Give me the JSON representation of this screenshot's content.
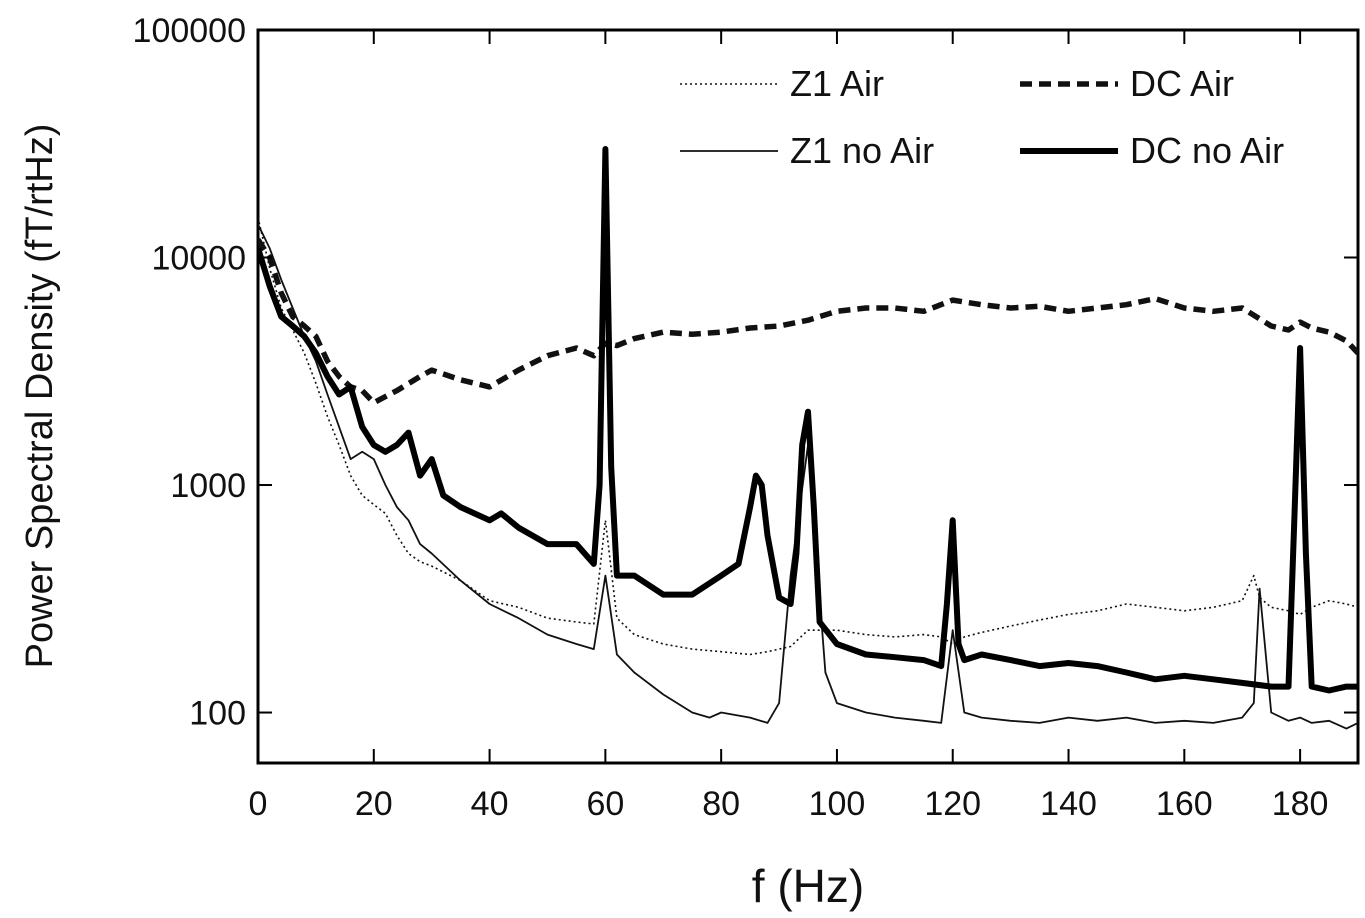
{
  "chart_data": {
    "type": "line",
    "title": "",
    "xlabel": "f (Hz)",
    "ylabel": "Power Spectral Density (fT/rtHz)",
    "xlim": [
      0,
      190
    ],
    "ylim": [
      60,
      100000
    ],
    "yscale": "log",
    "grid": false,
    "legend_position": "top-right",
    "x_ticks": [
      0,
      20,
      40,
      60,
      80,
      100,
      120,
      140,
      160,
      180
    ],
    "y_ticks": [
      100,
      1000,
      10000,
      100000
    ],
    "series": [
      {
        "name": "Z1 Air",
        "style": "dotted",
        "color": "#111111",
        "x": [
          0,
          2,
          4,
          6,
          8,
          10,
          12,
          14,
          16,
          18,
          20,
          22,
          24,
          26,
          28,
          30,
          35,
          40,
          45,
          50,
          55,
          58,
          60,
          62,
          65,
          70,
          75,
          80,
          85,
          88,
          90,
          92,
          95,
          100,
          105,
          110,
          115,
          118,
          120,
          122,
          125,
          130,
          135,
          140,
          145,
          150,
          155,
          160,
          165,
          170,
          172,
          173,
          175,
          178,
          180,
          182,
          185,
          188,
          190
        ],
        "y": [
          15000,
          9000,
          6000,
          4800,
          3800,
          2800,
          2000,
          1500,
          1100,
          900,
          820,
          750,
          600,
          500,
          460,
          440,
          380,
          310,
          290,
          260,
          250,
          245,
          700,
          260,
          220,
          200,
          190,
          185,
          180,
          185,
          190,
          195,
          230,
          230,
          220,
          215,
          220,
          215,
          200,
          215,
          225,
          240,
          255,
          270,
          280,
          300,
          290,
          280,
          290,
          310,
          400,
          320,
          290,
          280,
          270,
          290,
          310,
          300,
          290
        ]
      },
      {
        "name": "Z1 no Air",
        "style": "solid",
        "color": "#111111",
        "x": [
          0,
          2,
          4,
          6,
          8,
          10,
          12,
          14,
          16,
          18,
          20,
          22,
          24,
          26,
          28,
          30,
          35,
          40,
          45,
          50,
          55,
          58,
          60,
          62,
          65,
          70,
          75,
          78,
          80,
          85,
          88,
          90,
          92,
          95,
          98,
          100,
          105,
          110,
          115,
          118,
          120,
          122,
          125,
          130,
          135,
          140,
          145,
          150,
          155,
          160,
          165,
          170,
          172,
          173,
          175,
          178,
          180,
          182,
          185,
          188,
          190
        ],
        "y": [
          14000,
          11000,
          8000,
          6000,
          4500,
          3500,
          2500,
          1800,
          1300,
          1400,
          1300,
          1000,
          800,
          700,
          550,
          500,
          380,
          300,
          260,
          220,
          200,
          190,
          400,
          180,
          150,
          120,
          100,
          95,
          100,
          95,
          90,
          110,
          400,
          1500,
          150,
          110,
          100,
          95,
          92,
          90,
          230,
          100,
          95,
          92,
          90,
          95,
          92,
          95,
          90,
          92,
          90,
          95,
          110,
          350,
          100,
          92,
          95,
          90,
          92,
          85,
          90
        ]
      },
      {
        "name": "DC Air",
        "style": "dashed",
        "color": "#111111",
        "x": [
          0,
          2,
          4,
          6,
          8,
          10,
          12,
          14,
          16,
          18,
          20,
          24,
          28,
          30,
          35,
          40,
          45,
          50,
          55,
          58,
          60,
          62,
          65,
          70,
          75,
          80,
          85,
          90,
          95,
          100,
          105,
          110,
          115,
          120,
          125,
          130,
          135,
          140,
          145,
          150,
          155,
          160,
          165,
          170,
          175,
          178,
          180,
          182,
          185,
          188,
          190
        ],
        "y": [
          12000,
          10000,
          7000,
          5500,
          5000,
          4500,
          3500,
          3000,
          2700,
          2600,
          2300,
          2600,
          3000,
          3200,
          2900,
          2700,
          3200,
          3700,
          4000,
          3700,
          4200,
          4100,
          4400,
          4700,
          4600,
          4700,
          4900,
          5000,
          5300,
          5800,
          6000,
          6000,
          5800,
          6500,
          6200,
          6000,
          6100,
          5800,
          6000,
          6200,
          6600,
          6000,
          5800,
          6000,
          5000,
          4800,
          5200,
          4900,
          4700,
          4300,
          3800
        ]
      },
      {
        "name": "DC no Air",
        "style": "thick",
        "color": "#000000",
        "x": [
          0,
          2,
          4,
          6,
          8,
          10,
          12,
          14,
          16,
          18,
          20,
          22,
          24,
          26,
          28,
          30,
          32,
          35,
          40,
          42,
          45,
          50,
          55,
          58,
          59,
          60,
          61,
          62,
          65,
          70,
          75,
          80,
          83,
          85,
          86,
          87,
          88,
          90,
          92,
          93,
          94,
          95,
          96,
          97,
          100,
          105,
          110,
          115,
          118,
          119,
          120,
          121,
          122,
          125,
          130,
          135,
          140,
          145,
          150,
          155,
          160,
          165,
          170,
          175,
          178,
          179,
          180,
          181,
          182,
          185,
          188,
          190
        ],
        "y": [
          11000,
          7500,
          5500,
          5000,
          4500,
          3800,
          3000,
          2500,
          2700,
          1800,
          1500,
          1400,
          1500,
          1700,
          1100,
          1300,
          900,
          800,
          700,
          750,
          650,
          550,
          550,
          450,
          1000,
          30000,
          1200,
          400,
          400,
          330,
          330,
          400,
          450,
          800,
          1100,
          1000,
          600,
          320,
          300,
          500,
          1500,
          2100,
          800,
          250,
          200,
          180,
          175,
          170,
          160,
          300,
          700,
          200,
          170,
          180,
          170,
          160,
          165,
          160,
          150,
          140,
          145,
          140,
          135,
          130,
          130,
          700,
          4000,
          500,
          130,
          125,
          130,
          130
        ]
      }
    ]
  }
}
